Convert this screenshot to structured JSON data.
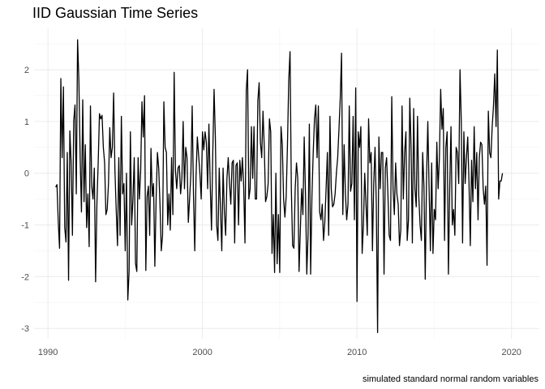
{
  "chart_data": {
    "type": "line",
    "title": "IID Gaussian Time Series",
    "caption": "simulated standard normal random variables",
    "xlabel": "",
    "ylabel": "",
    "xlim": [
      1989.1,
      2021.8
    ],
    "ylim": [
      -3.2,
      2.8
    ],
    "x_ticks": [
      1990,
      2000,
      2010,
      2020
    ],
    "y_ticks": [
      -3,
      -2,
      -1,
      0,
      1,
      2
    ],
    "grid": true,
    "series": [
      {
        "start": 1990.5,
        "step": 0.0833333,
        "values": [
          -0.27,
          -0.22,
          -0.95,
          -1.45,
          1.83,
          0.3,
          1.67,
          -1.05,
          -1.33,
          0.4,
          -2.07,
          0.82,
          0.2,
          -1.2,
          1.02,
          1.32,
          -0.4,
          2.58,
          1.8,
          0.3,
          -0.75,
          1.42,
          -0.55,
          0.55,
          -1.05,
          -0.4,
          -1.42,
          1.3,
          -0.25,
          -0.5,
          0.1,
          -2.1,
          -0.6,
          0.2,
          1.15,
          1.05,
          1.12,
          0.5,
          0.2,
          -0.8,
          -0.7,
          -0.2,
          0.88,
          0.3,
          0.5,
          1.55,
          0.05,
          -0.7,
          -1.4,
          0.3,
          -1.2,
          1.1,
          -0.4,
          -0.2,
          -1.5,
          0.0,
          -2.45,
          -1.9,
          0.8,
          -1.0,
          -0.5,
          0.3,
          -1.75,
          -1.9,
          0.3,
          -0.5,
          0.05,
          1.38,
          0.7,
          1.5,
          -1.88,
          -0.45,
          -0.25,
          -1.2,
          0.48,
          -0.45,
          -0.2,
          -1.8,
          -0.5,
          0.4,
          0.1,
          -0.6,
          -1.5,
          -1.2,
          1.38,
          0.5,
          0.4,
          -1.0,
          -0.4,
          -1.1,
          0.3,
          -0.8,
          1.95,
          0.05,
          -0.3,
          0.1,
          0.15,
          -0.4,
          -0.1,
          1.0,
          -0.3,
          0.5,
          0.3,
          -0.95,
          -0.5,
          0.0,
          1.3,
          -0.4,
          -1.5,
          -0.05,
          0.7,
          0.35,
          0.0,
          -0.5,
          0.8,
          0.45,
          0.8,
          0.6,
          -0.3,
          0.95,
          -0.2,
          -1.1,
          0.4,
          1.62,
          0.7,
          -1.0,
          -1.3,
          0.1,
          -0.7,
          -1.5,
          0.1,
          -0.75,
          -1.2,
          -0.1,
          0.3,
          -0.2,
          -0.6,
          0.2,
          0.25,
          -1.35,
          0.15,
          0.2,
          -1.0,
          0.25,
          -0.15,
          0.3,
          -0.25,
          -1.35,
          1.6,
          2.0,
          -0.5,
          -0.3,
          0.9,
          -0.1,
          0.9,
          -0.5,
          -0.5,
          1.4,
          1.75,
          0.6,
          0.3,
          1.2,
          0.5,
          -0.55,
          -0.45,
          -0.2,
          1.05,
          0.8,
          -1.55,
          -0.8,
          -1.92,
          0.0,
          -1.75,
          -0.8,
          -1.92,
          0.9,
          0.55,
          -0.5,
          -0.85,
          -0.45,
          0.55,
          1.8,
          2.35,
          -0.3,
          -1.4,
          -1.45,
          -0.3,
          0.2,
          -0.1,
          -1.9,
          -1.1,
          -0.3,
          -0.8,
          0.7,
          -0.4,
          -1.95,
          -1.2,
          0.95,
          -1.95,
          -0.45,
          0.4,
          1.05,
          1.32,
          0.3,
          1.3,
          -0.75,
          -0.9,
          -0.6,
          -1.3,
          -0.95,
          -0.3,
          0.4,
          -1.2,
          1.1,
          -0.3,
          -0.65,
          -0.6,
          -0.4,
          0.0,
          0.3,
          0.85,
          1.45,
          2.32,
          -0.8,
          0.55,
          -0.4,
          -0.9,
          -0.6,
          1.3,
          -0.35,
          -0.2,
          1.1,
          -0.9,
          1.65,
          -2.48,
          0.8,
          0.5,
          0.9,
          -1.55,
          -1.0,
          0.0,
          -0.6,
          -1.2,
          1.05,
          0.2,
          0.4,
          -1.5,
          -0.2,
          0.5,
          -0.6,
          -3.08,
          0.7,
          -0.3,
          0.4,
          0.4,
          -1.95,
          0.1,
          0.3,
          -0.4,
          -1.2,
          -1.3,
          1.48,
          -0.3,
          -0.8,
          0.2,
          -0.4,
          -0.6,
          -1.4,
          -1.1,
          1.3,
          -0.5,
          0.4,
          0.8,
          -1.3,
          -0.9,
          1.45,
          0.5,
          -1.35,
          1.25,
          -0.3,
          -0.65,
          1.1,
          -0.45,
          -1.0,
          -1.3,
          0.4,
          -0.25,
          -2.05,
          -0.1,
          1.0,
          -0.3,
          -1.5,
          0.2,
          -1.55,
          -0.7,
          -0.9,
          0.6,
          -0.3,
          0.3,
          1.62,
          0.85,
          1.25,
          -1.3,
          0.5,
          0.8,
          -1.95,
          -0.3,
          0.9,
          -1.0,
          -0.7,
          -1.2,
          0.5,
          0.4,
          -0.2,
          2.0,
          1.0,
          -1.35,
          0.8,
          -0.2,
          0.3,
          0.7,
          -0.2,
          -1.4,
          0.25,
          -0.55,
          0.9,
          -0.3,
          0.4,
          -0.9,
          0.3,
          0.6,
          0.55,
          -0.3,
          -0.6,
          -0.25,
          -1.78,
          1.2,
          0.4,
          0.3,
          0.9,
          1.3,
          1.92,
          0.9,
          2.38,
          -0.5,
          -0.15,
          -0.15,
          0.0
        ]
      }
    ]
  }
}
